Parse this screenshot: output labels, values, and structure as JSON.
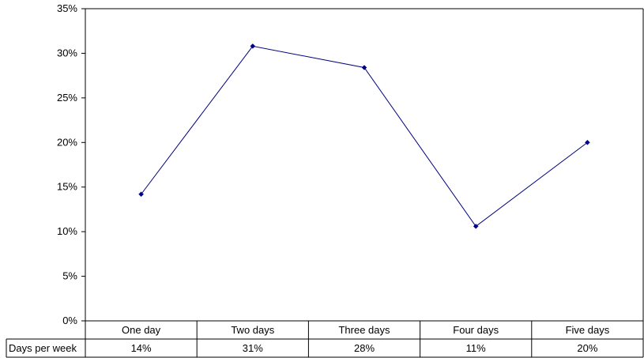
{
  "chart_data": {
    "type": "line",
    "categories": [
      "One day",
      "Two days",
      "Three days",
      "Four days",
      "Five days"
    ],
    "series": [
      {
        "name": "Days per week",
        "values": [
          14.2,
          30.8,
          28.4,
          10.6,
          20.0
        ],
        "labels": [
          "14%",
          "31%",
          "28%",
          "11%",
          "20%"
        ],
        "color": "#000080"
      }
    ],
    "ylim": [
      0,
      35
    ],
    "yticks": [
      0,
      5,
      10,
      15,
      20,
      25,
      30,
      35
    ],
    "ytick_labels": [
      "0%",
      "5%",
      "10%",
      "15%",
      "20%",
      "25%",
      "30%",
      "35%"
    ],
    "grid": false,
    "legend": "data-table-below"
  }
}
